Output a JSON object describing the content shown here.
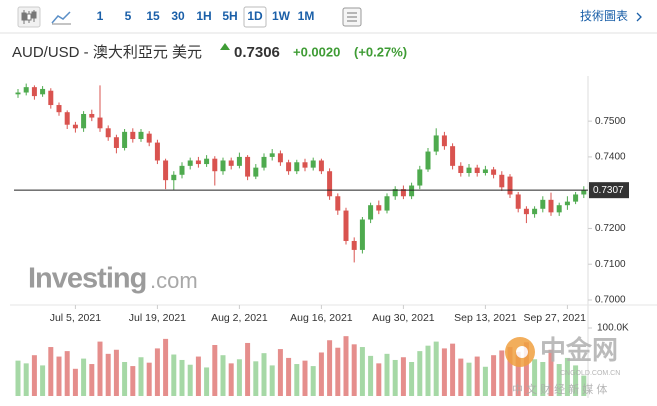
{
  "header": {
    "intervals": [
      "1",
      "5",
      "15",
      "30",
      "1H",
      "5H",
      "1D",
      "1W",
      "1M"
    ],
    "selected_interval": 6,
    "link": "技術圖表"
  },
  "quote": {
    "title": "AUD/USD - 澳大利亞元 美元",
    "price": "0.7306",
    "change": "+0.0020",
    "change_percent": "(+0.27%)"
  },
  "chart_data": {
    "type": "candlestick",
    "categories": [
      null,
      null,
      null,
      null,
      null,
      null,
      null,
      "Jul 5, 2021",
      null,
      null,
      null,
      null,
      null,
      null,
      null,
      null,
      null,
      "Jul 19, 2021",
      null,
      null,
      null,
      null,
      null,
      null,
      null,
      null,
      null,
      "Aug 2, 2021",
      null,
      null,
      null,
      null,
      null,
      null,
      null,
      null,
      null,
      "Aug 16, 2021",
      null,
      null,
      null,
      null,
      null,
      null,
      null,
      null,
      null,
      "Aug 30, 2021",
      null,
      null,
      null,
      null,
      null,
      null,
      null,
      null,
      null,
      "Sep 13, 2021",
      null,
      null,
      null,
      null,
      null,
      null,
      null,
      null,
      null,
      "Sep 27, 2021",
      null,
      null
    ],
    "open": [
      0.7575,
      0.758,
      0.7595,
      0.7575,
      0.7585,
      0.7545,
      0.7525,
      0.749,
      0.748,
      0.752,
      0.751,
      0.748,
      0.7455,
      0.7425,
      0.747,
      0.745,
      0.7465,
      0.744,
      0.739,
      0.7335,
      0.735,
      0.7375,
      0.739,
      0.738,
      0.7395,
      0.736,
      0.739,
      0.7375,
      0.74,
      0.7345,
      0.737,
      0.74,
      0.741,
      0.7385,
      0.736,
      0.7385,
      0.737,
      0.739,
      0.736,
      0.729,
      0.725,
      0.7165,
      0.714,
      0.7225,
      0.7265,
      0.725,
      0.729,
      0.731,
      0.729,
      0.732,
      0.7365,
      0.7415,
      0.746,
      0.743,
      0.7375,
      0.7355,
      0.737,
      0.7355,
      0.7365,
      0.735,
      0.7345,
      0.7295,
      0.7255,
      0.724,
      0.7255,
      0.728,
      0.7245,
      0.7265,
      0.7275,
      0.7295
    ],
    "high": [
      0.759,
      0.7605,
      0.76,
      0.7598,
      0.7592,
      0.7552,
      0.753,
      0.7498,
      0.7528,
      0.7532,
      0.76,
      0.7488,
      0.7462,
      0.7478,
      0.748,
      0.7478,
      0.7472,
      0.7448,
      0.7395,
      0.736,
      0.7385,
      0.7398,
      0.74,
      0.7405,
      0.7402,
      0.7398,
      0.7398,
      0.7412,
      0.7405,
      0.738,
      0.741,
      0.7422,
      0.7418,
      0.7392,
      0.7392,
      0.7395,
      0.7398,
      0.7395,
      0.7368,
      0.7298,
      0.7258,
      0.7175,
      0.7232,
      0.7272,
      0.7278,
      0.7298,
      0.7318,
      0.732,
      0.7328,
      0.7375,
      0.7425,
      0.748,
      0.747,
      0.7438,
      0.7385,
      0.738,
      0.7378,
      0.7375,
      0.7372,
      0.736,
      0.7352,
      0.7302,
      0.7262,
      0.7262,
      0.729,
      0.73,
      0.7272,
      0.729,
      0.7302,
      0.7318
    ],
    "low": [
      0.7565,
      0.7572,
      0.756,
      0.7568,
      0.7535,
      0.7515,
      0.7478,
      0.7468,
      0.747,
      0.75,
      0.747,
      0.7445,
      0.741,
      0.7418,
      0.744,
      0.7442,
      0.743,
      0.738,
      0.731,
      0.7308,
      0.734,
      0.7365,
      0.737,
      0.7372,
      0.732,
      0.735,
      0.7365,
      0.7368,
      0.7335,
      0.7338,
      0.7362,
      0.739,
      0.7375,
      0.735,
      0.7352,
      0.736,
      0.7362,
      0.7352,
      0.728,
      0.7238,
      0.7155,
      0.7105,
      0.713,
      0.7215,
      0.724,
      0.7242,
      0.728,
      0.7282,
      0.7282,
      0.731,
      0.7358,
      0.7405,
      0.742,
      0.7365,
      0.7345,
      0.7345,
      0.7345,
      0.7348,
      0.734,
      0.7305,
      0.7285,
      0.7245,
      0.7215,
      0.723,
      0.7245,
      0.7235,
      0.7235,
      0.7252,
      0.7268,
      0.7285
    ],
    "close": [
      0.758,
      0.7595,
      0.757,
      0.759,
      0.7545,
      0.7525,
      0.749,
      0.748,
      0.752,
      0.751,
      0.748,
      0.7455,
      0.7425,
      0.747,
      0.745,
      0.747,
      0.744,
      0.739,
      0.7335,
      0.735,
      0.7375,
      0.739,
      0.738,
      0.7395,
      0.736,
      0.739,
      0.7375,
      0.74,
      0.7345,
      0.737,
      0.74,
      0.741,
      0.7385,
      0.736,
      0.7385,
      0.737,
      0.739,
      0.736,
      0.729,
      0.725,
      0.7165,
      0.714,
      0.7225,
      0.7265,
      0.725,
      0.729,
      0.731,
      0.729,
      0.732,
      0.7365,
      0.7415,
      0.746,
      0.743,
      0.7375,
      0.7355,
      0.737,
      0.7355,
      0.7365,
      0.735,
      0.7315,
      0.7295,
      0.7255,
      0.724,
      0.7255,
      0.728,
      0.7245,
      0.7265,
      0.7275,
      0.7295,
      0.7306
    ],
    "volume": [
      52000,
      48000,
      60000,
      45000,
      72000,
      58000,
      66000,
      40000,
      55000,
      47000,
      80000,
      62000,
      68000,
      50000,
      44000,
      57000,
      49000,
      70000,
      84000,
      61000,
      53000,
      46000,
      58000,
      42000,
      75000,
      60000,
      48000,
      54000,
      78000,
      51000,
      63000,
      45000,
      69000,
      56000,
      47000,
      52000,
      44000,
      64000,
      82000,
      71000,
      88000,
      76000,
      72000,
      59000,
      48000,
      62000,
      53000,
      57000,
      50000,
      66000,
      74000,
      80000,
      70000,
      77000,
      55000,
      49000,
      58000,
      43000,
      60000,
      67000,
      72000,
      65000,
      79000,
      54000,
      50000,
      68000,
      47000,
      56000,
      45000,
      30000
    ],
    "up_color": "#4eaa4e",
    "down_color": "#d9534f",
    "up_volume_color": "#a6d8a6",
    "down_volume_color": "#e58e8c",
    "ylim": [
      0.6986,
      0.7615
    ],
    "yticks": [
      {
        "value": 0.75,
        "label": "0.7500"
      },
      {
        "value": 0.74,
        "label": "0.7400"
      },
      {
        "value": 0.72,
        "label": "0.7200"
      },
      {
        "value": 0.71,
        "label": "0.7100"
      },
      {
        "value": 0.7,
        "label": "0.7000"
      }
    ],
    "price_line": 0.7307,
    "volume_ylim": [
      0,
      100000
    ],
    "volume_ticks": [
      {
        "value": 100000,
        "label": "100.0K"
      }
    ]
  },
  "watermark": {
    "brand": "Investing",
    "suffix": ".com",
    "site_logo": "中金网",
    "site_url": "CNGOLD.COM.CN",
    "site_slogan": "中 文 财 经 新 媒 体"
  }
}
